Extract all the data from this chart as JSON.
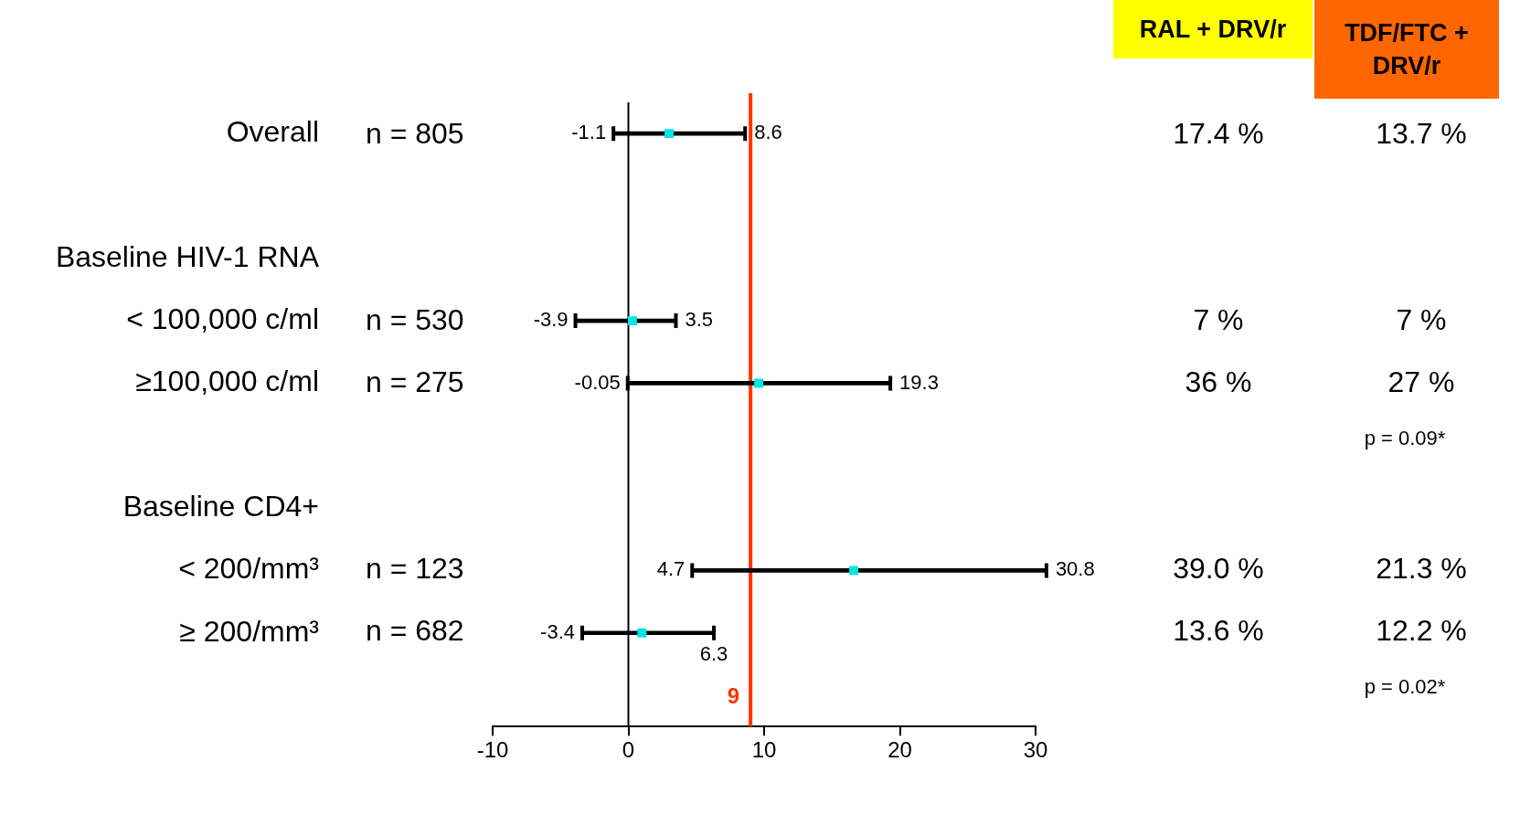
{
  "chart_data": {
    "type": "bar",
    "orientation": "horizontal",
    "categories": [
      "Overall",
      null,
      "Baseline HIV-1 RNA",
      "< 100,000 c/ml",
      "≥100,000 c/ml",
      null,
      "Baseline CD4+",
      "< 200/mm³",
      "≥ 200/mm³",
      null
    ],
    "series": [
      {
        "color": "#000000",
        "base": [
          -1.1,
          null,
          null,
          -3.9,
          -0.05,
          null,
          null,
          4.7,
          -3.4,
          null
        ],
        "values": [
          9.7,
          null,
          null,
          7.4,
          19.35,
          null,
          null,
          26.1,
          9.7,
          null
        ]
      },
      {
        "type": "scatter",
        "color": "#00e5e5",
        "values": [
          3.0,
          null,
          null,
          0.3,
          9.6,
          null,
          null,
          16.6,
          1.0,
          null
        ]
      }
    ],
    "marker": "square",
    "xlim": [
      -10,
      30
    ],
    "xticks": [
      -10,
      0,
      10,
      20,
      30
    ],
    "ref_lines": [
      {
        "axis": "x",
        "value": 0,
        "color": "#000000"
      },
      {
        "axis": "x",
        "value": 9,
        "label": "9",
        "color": "#ff3300"
      }
    ],
    "annotations": [
      "RAL + DRV/r",
      "TDF/FTC + DRV/r",
      "n = 805",
      "17.4 %",
      "13.7 %",
      "n = 530",
      "7 %",
      "7 %",
      "n = 275",
      "36 %",
      "27 %",
      "p = 0.09*",
      "n = 123",
      "39.0 %",
      "21.3 %",
      "n = 682",
      "13.6 %",
      "12.2 %",
      "p = 0.02*",
      {
        "text": "-1.1",
        "x": -1.1,
        "y": "Overall"
      },
      {
        "text": "8.6",
        "x": 8.6,
        "y": "Overall"
      },
      {
        "text": "-3.9",
        "x": -3.9,
        "y": "< 100,000 c/ml"
      },
      {
        "text": "3.5",
        "x": 3.5,
        "y": "< 100,000 c/ml"
      },
      {
        "text": "-0.05",
        "x": -0.05,
        "y": "≥100,000 c/ml"
      },
      {
        "text": "19.3",
        "x": 19.3,
        "y": "≥100,000 c/ml"
      },
      {
        "text": "4.7",
        "x": 4.7,
        "y": "< 200/mm³"
      },
      {
        "text": "30.8",
        "x": 30.8,
        "y": "< 200/mm³"
      },
      {
        "text": "-3.4",
        "x": -3.4,
        "y": "≥ 200/mm³"
      },
      {
        "text": "6.3",
        "x": 6.3,
        "y": "≥ 200/mm³"
      }
    ]
  }
}
